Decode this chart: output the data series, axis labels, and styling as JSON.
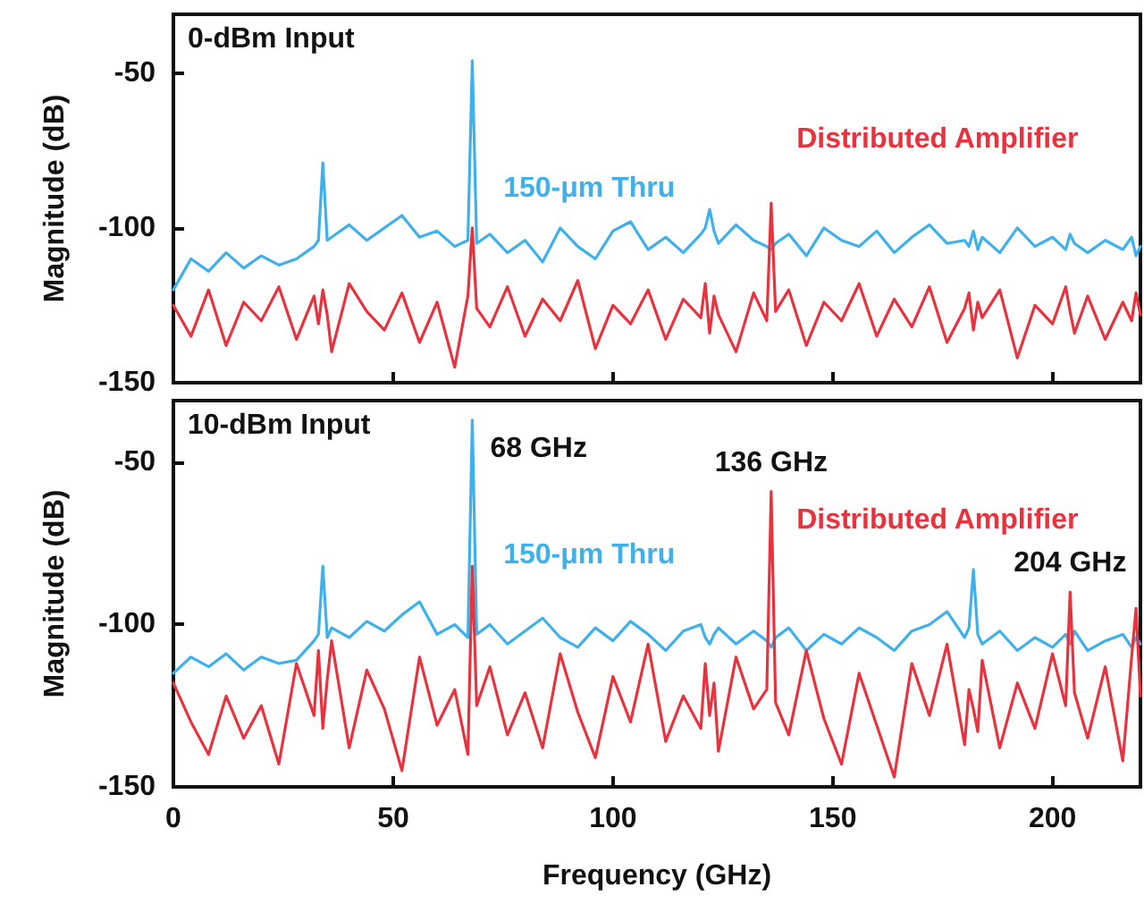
{
  "chart_data": [
    {
      "type": "line",
      "ylabel": "Magnitude (dB)",
      "xlim": [
        0,
        220
      ],
      "xticks": [
        0,
        50,
        100,
        150,
        200
      ],
      "ylim": [
        -150,
        -31
      ],
      "yticks": [
        -150,
        -100,
        -50
      ],
      "tick_labels": "y",
      "marker": "none",
      "annotations": [
        "0-dBm Input"
      ],
      "x": [
        0,
        4,
        8,
        12,
        16,
        20,
        24,
        28,
        32,
        33,
        34,
        35,
        36,
        40,
        44,
        48,
        52,
        56,
        60,
        64,
        67,
        68,
        69,
        72,
        76,
        80,
        84,
        88,
        92,
        96,
        100,
        104,
        108,
        112,
        116,
        120,
        121,
        122,
        123,
        124,
        128,
        132,
        135,
        136,
        137,
        140,
        144,
        148,
        152,
        156,
        160,
        164,
        168,
        172,
        176,
        180,
        181,
        182,
        183,
        184,
        188,
        192,
        196,
        200,
        203,
        204,
        205,
        208,
        212,
        216,
        218,
        219,
        220
      ],
      "series": [
        {
          "name": "150-μm Thru",
          "color": "#3fb1ea",
          "values": [
            -120,
            -110,
            -114,
            -108,
            -113,
            -109,
            -112,
            -110,
            -106,
            -104,
            -79,
            -104,
            -103,
            -99,
            -104,
            -100,
            -96,
            -103,
            -101,
            -106,
            -104,
            -46,
            -105,
            -102,
            -108,
            -104,
            -111,
            -100,
            -106,
            -110,
            -101,
            -98,
            -107,
            -103,
            -108,
            -102,
            -100,
            -94,
            -101,
            -105,
            -99,
            -104,
            -106,
            -107,
            -105,
            -102,
            -109,
            -100,
            -104,
            -106,
            -101,
            -108,
            -103,
            -99,
            -105,
            -104,
            -106,
            -101,
            -107,
            -103,
            -108,
            -100,
            -106,
            -103,
            -107,
            -102,
            -105,
            -108,
            -104,
            -107,
            -103,
            -109,
            -106
          ]
        },
        {
          "name": "Distributed Amplifier",
          "color": "#e8333f",
          "values": [
            -125,
            -135,
            -120,
            -138,
            -124,
            -130,
            -119,
            -136,
            -122,
            -131,
            -120,
            -128,
            -140,
            -118,
            -127,
            -133,
            -121,
            -137,
            -124,
            -145,
            -122,
            -100,
            -126,
            -132,
            -119,
            -135,
            -123,
            -130,
            -117,
            -139,
            -125,
            -131,
            -120,
            -136,
            -123,
            -129,
            -118,
            -134,
            -122,
            -128,
            -140,
            -121,
            -130,
            -92,
            -127,
            -120,
            -138,
            -124,
            -130,
            -118,
            -135,
            -123,
            -132,
            -119,
            -137,
            -126,
            -121,
            -133,
            -124,
            -129,
            -120,
            -142,
            -125,
            -131,
            -119,
            -127,
            -134,
            -122,
            -136,
            -124,
            -130,
            -121,
            -128
          ]
        }
      ]
    },
    {
      "type": "line",
      "ylabel": "Magnitude (dB)",
      "xlabel": "Frequency (GHz)",
      "xlim": [
        0,
        220
      ],
      "xticks": [
        0,
        50,
        100,
        150,
        200
      ],
      "ylim": [
        -150,
        -31
      ],
      "yticks": [
        -150,
        -100,
        -50
      ],
      "marker": "none",
      "annotations": [
        "10-dBm Input",
        {
          "text": "68 GHz",
          "x": 68,
          "y": -37
        },
        {
          "text": "136 GHz",
          "x": 136,
          "y": -59
        },
        {
          "text": "204 GHz",
          "x": 204,
          "y": -90
        }
      ],
      "x": [
        0,
        4,
        8,
        12,
        16,
        20,
        24,
        28,
        32,
        33,
        34,
        35,
        36,
        40,
        44,
        48,
        52,
        56,
        60,
        64,
        67,
        68,
        69,
        72,
        76,
        80,
        84,
        88,
        92,
        96,
        100,
        104,
        108,
        112,
        116,
        120,
        121,
        122,
        123,
        124,
        128,
        132,
        135,
        136,
        137,
        140,
        144,
        148,
        152,
        156,
        160,
        164,
        168,
        172,
        176,
        180,
        181,
        182,
        183,
        184,
        188,
        192,
        196,
        200,
        203,
        204,
        205,
        208,
        212,
        216,
        218,
        219,
        220
      ],
      "series": [
        {
          "name": "150-μm Thru",
          "color": "#3fb1ea",
          "values": [
            -115,
            -110,
            -113,
            -109,
            -114,
            -110,
            -112,
            -111,
            -105,
            -103,
            -82,
            -104,
            -101,
            -104,
            -99,
            -102,
            -97,
            -93,
            -103,
            -100,
            -104,
            -37,
            -103,
            -100,
            -106,
            -102,
            -98,
            -104,
            -107,
            -101,
            -105,
            -99,
            -103,
            -108,
            -102,
            -100,
            -104,
            -106,
            -103,
            -101,
            -106,
            -102,
            -105,
            -107,
            -104,
            -101,
            -108,
            -103,
            -106,
            -101,
            -104,
            -108,
            -102,
            -100,
            -96,
            -104,
            -101,
            -83,
            -103,
            -106,
            -102,
            -108,
            -104,
            -107,
            -103,
            -106,
            -102,
            -108,
            -105,
            -103,
            -107,
            -104,
            -106
          ]
        },
        {
          "name": "Distributed Amplifier",
          "color": "#e8333f",
          "values": [
            -118,
            -130,
            -140,
            -122,
            -135,
            -125,
            -143,
            -112,
            -128,
            -108,
            -132,
            -117,
            -105,
            -138,
            -114,
            -126,
            -145,
            -110,
            -131,
            -120,
            -140,
            -82,
            -125,
            -113,
            -134,
            -121,
            -138,
            -109,
            -127,
            -141,
            -116,
            -130,
            -106,
            -136,
            -122,
            -132,
            -112,
            -128,
            -118,
            -139,
            -110,
            -126,
            -120,
            -59,
            -124,
            -134,
            -108,
            -129,
            -143,
            -115,
            -131,
            -147,
            -112,
            -128,
            -106,
            -137,
            -120,
            -126,
            -133,
            -111,
            -138,
            -118,
            -132,
            -109,
            -125,
            -90,
            -121,
            -135,
            -113,
            -142,
            -110,
            -95,
            -122
          ]
        }
      ]
    }
  ]
}
